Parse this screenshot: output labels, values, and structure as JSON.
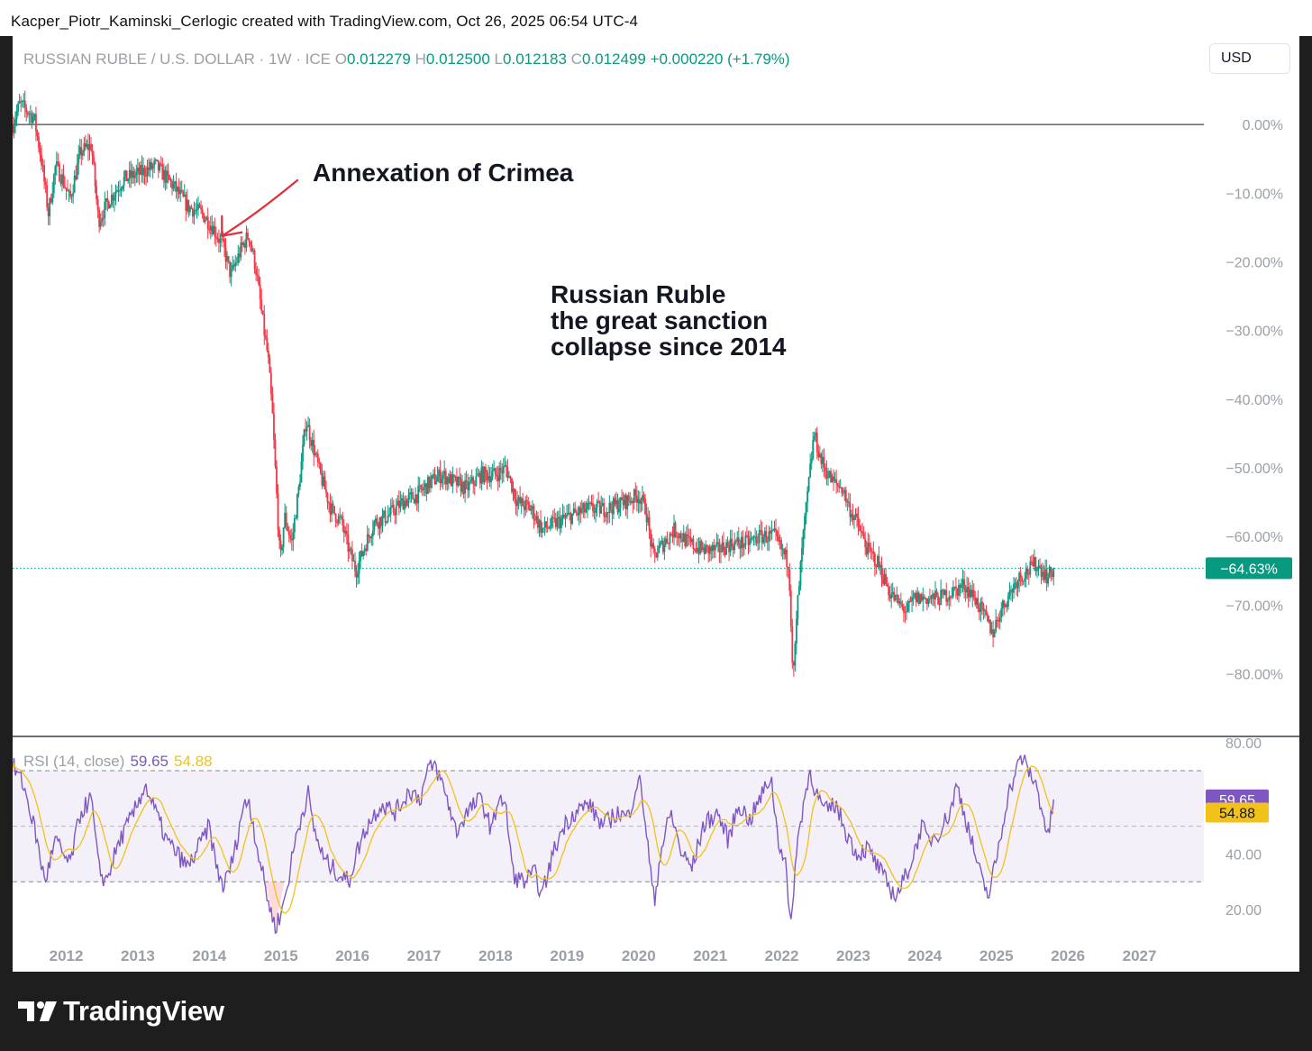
{
  "header": {
    "attribution": "Kacper_Piotr_Kaminski_Cerlogic created with TradingView.com, Oct 26, 2025 06:54 UTC-4"
  },
  "legend": {
    "symbol": "RUSSIAN RUBLE / U.S. DOLLAR · 1W · ICE",
    "o_label": "O",
    "open": "0.012279",
    "h_label": "H",
    "high": "0.012500",
    "l_label": "L",
    "low": "0.012183",
    "c_label": "C",
    "close": "0.012499",
    "change": "+0.000220 (+1.79%)"
  },
  "currency_button": "USD",
  "annotations": {
    "crimea": "Annexation of Crimea",
    "title_line1": "Russian Ruble",
    "title_line2": "the great sanction",
    "title_line3": "collapse since 2014"
  },
  "rsi": {
    "label": "RSI (14, close)",
    "value": "59.65",
    "ma_value": "54.88",
    "value_badge": "59.65",
    "ma_badge": "54.88"
  },
  "price_badge": "−64.63%",
  "footer": {
    "brand": "TradingView"
  },
  "colors": {
    "up": "#089981",
    "down": "#f23645",
    "rsi_line": "#7e57c2",
    "rsi_ma": "#f2c21b",
    "rsi_band": "#7e57c2",
    "annotation_arrow": "#e0303a"
  },
  "chart_data": {
    "type": "candlestick",
    "title": "RUSSIAN RUBLE / U.S. DOLLAR · 1W · ICE",
    "y_axis": {
      "unit": "percent change",
      "ticks": [
        0,
        -10,
        -20,
        -30,
        -40,
        -50,
        -60,
        -70,
        -80
      ],
      "tick_labels": [
        "0.00%",
        "−10.00%",
        "−20.00%",
        "−30.00%",
        "−40.00%",
        "−50.00%",
        "−60.00%",
        "−70.00%",
        "−80.00%"
      ],
      "range": [
        -89,
        5
      ],
      "current": -64.63
    },
    "x_axis": {
      "ticks": [
        2012,
        2013,
        2014,
        2015,
        2016,
        2017,
        2018,
        2019,
        2020,
        2021,
        2022,
        2023,
        2024,
        2025,
        2026,
        2027
      ],
      "tick_labels": [
        "2012",
        "2013",
        "2014",
        "2015",
        "2016",
        "2017",
        "2018",
        "2019",
        "2020",
        "2021",
        "2022",
        "2023",
        "2024",
        "2025",
        "2026",
        "2027"
      ],
      "range": [
        2011.25,
        2027.9
      ]
    },
    "price_path": [
      [
        2011.25,
        0
      ],
      [
        2011.35,
        3
      ],
      [
        2011.55,
        1
      ],
      [
        2011.65,
        -5
      ],
      [
        2011.75,
        -13
      ],
      [
        2011.85,
        -6
      ],
      [
        2011.95,
        -8
      ],
      [
        2012.05,
        -11
      ],
      [
        2012.2,
        -4
      ],
      [
        2012.35,
        -3
      ],
      [
        2012.45,
        -14
      ],
      [
        2012.6,
        -11
      ],
      [
        2012.8,
        -8
      ],
      [
        2013.05,
        -7
      ],
      [
        2013.25,
        -6
      ],
      [
        2013.5,
        -9
      ],
      [
        2013.7,
        -12
      ],
      [
        2013.9,
        -13
      ],
      [
        2014.05,
        -15
      ],
      [
        2014.2,
        -18
      ],
      [
        2014.3,
        -22
      ],
      [
        2014.45,
        -18
      ],
      [
        2014.55,
        -16
      ],
      [
        2014.65,
        -21
      ],
      [
        2014.75,
        -29
      ],
      [
        2014.82,
        -34
      ],
      [
        2014.88,
        -42
      ],
      [
        2014.95,
        -56
      ],
      [
        2014.99,
        -64
      ],
      [
        2015.05,
        -57
      ],
      [
        2015.15,
        -61
      ],
      [
        2015.25,
        -53
      ],
      [
        2015.35,
        -43
      ],
      [
        2015.45,
        -47
      ],
      [
        2015.55,
        -51
      ],
      [
        2015.7,
        -56
      ],
      [
        2015.85,
        -58
      ],
      [
        2015.95,
        -62
      ],
      [
        2016.05,
        -65
      ],
      [
        2016.15,
        -62
      ],
      [
        2016.3,
        -58
      ],
      [
        2016.5,
        -57
      ],
      [
        2016.7,
        -55
      ],
      [
        2016.9,
        -54
      ],
      [
        2017.1,
        -52
      ],
      [
        2017.25,
        -51
      ],
      [
        2017.4,
        -52
      ],
      [
        2017.6,
        -53
      ],
      [
        2017.8,
        -51
      ],
      [
        2018.0,
        -51
      ],
      [
        2018.15,
        -50
      ],
      [
        2018.3,
        -55
      ],
      [
        2018.5,
        -56
      ],
      [
        2018.65,
        -59
      ],
      [
        2018.85,
        -58
      ],
      [
        2019.05,
        -57
      ],
      [
        2019.3,
        -56
      ],
      [
        2019.55,
        -56
      ],
      [
        2019.8,
        -55
      ],
      [
        2020.0,
        -54
      ],
      [
        2020.1,
        -56
      ],
      [
        2020.2,
        -63
      ],
      [
        2020.35,
        -61
      ],
      [
        2020.5,
        -59
      ],
      [
        2020.7,
        -61
      ],
      [
        2020.9,
        -62
      ],
      [
        2021.1,
        -62
      ],
      [
        2021.3,
        -61
      ],
      [
        2021.5,
        -61
      ],
      [
        2021.7,
        -60
      ],
      [
        2021.9,
        -60
      ],
      [
        2022.0,
        -62
      ],
      [
        2022.1,
        -64
      ],
      [
        2022.16,
        -81
      ],
      [
        2022.22,
        -70
      ],
      [
        2022.3,
        -60
      ],
      [
        2022.38,
        -52
      ],
      [
        2022.45,
        -45
      ],
      [
        2022.55,
        -49
      ],
      [
        2022.7,
        -52
      ],
      [
        2022.85,
        -53
      ],
      [
        2022.95,
        -56
      ],
      [
        2023.05,
        -58
      ],
      [
        2023.2,
        -62
      ],
      [
        2023.35,
        -64
      ],
      [
        2023.5,
        -68
      ],
      [
        2023.65,
        -70
      ],
      [
        2023.75,
        -71
      ],
      [
        2023.85,
        -69
      ],
      [
        2024.0,
        -69
      ],
      [
        2024.2,
        -69
      ],
      [
        2024.4,
        -68
      ],
      [
        2024.55,
        -67
      ],
      [
        2024.7,
        -69
      ],
      [
        2024.85,
        -72
      ],
      [
        2024.95,
        -74
      ],
      [
        2025.05,
        -71
      ],
      [
        2025.15,
        -69
      ],
      [
        2025.3,
        -66
      ],
      [
        2025.45,
        -65
      ],
      [
        2025.55,
        -64
      ],
      [
        2025.65,
        -65
      ],
      [
        2025.72,
        -66
      ],
      [
        2025.8,
        -64.63
      ]
    ],
    "rsi": {
      "label": "RSI (14, close)",
      "y_ticks": [
        80,
        40,
        20
      ],
      "y_tick_labels": [
        "80.00",
        "40.00",
        "20.00"
      ],
      "y_range": [
        8,
        82
      ],
      "band": [
        30,
        70
      ],
      "midline": 50,
      "rsi_path": [
        [
          2011.25,
          72
        ],
        [
          2011.4,
          65
        ],
        [
          2011.55,
          50
        ],
        [
          2011.7,
          30
        ],
        [
          2011.85,
          45
        ],
        [
          2011.95,
          40
        ],
        [
          2012.05,
          36
        ],
        [
          2012.2,
          55
        ],
        [
          2012.35,
          60
        ],
        [
          2012.45,
          35
        ],
        [
          2012.55,
          30
        ],
        [
          2012.75,
          45
        ],
        [
          2012.95,
          55
        ],
        [
          2013.1,
          65
        ],
        [
          2013.25,
          55
        ],
        [
          2013.4,
          45
        ],
        [
          2013.55,
          40
        ],
        [
          2013.7,
          35
        ],
        [
          2013.9,
          45
        ],
        [
          2014.0,
          50
        ],
        [
          2014.1,
          35
        ],
        [
          2014.2,
          28
        ],
        [
          2014.35,
          40
        ],
        [
          2014.45,
          55
        ],
        [
          2014.55,
          60
        ],
        [
          2014.65,
          45
        ],
        [
          2014.75,
          32
        ],
        [
          2014.85,
          20
        ],
        [
          2014.92,
          14
        ],
        [
          2015.0,
          18
        ],
        [
          2015.1,
          30
        ],
        [
          2015.2,
          45
        ],
        [
          2015.3,
          55
        ],
        [
          2015.38,
          62
        ],
        [
          2015.45,
          50
        ],
        [
          2015.6,
          38
        ],
        [
          2015.8,
          33
        ],
        [
          2015.95,
          30
        ],
        [
          2016.05,
          40
        ],
        [
          2016.2,
          50
        ],
        [
          2016.4,
          58
        ],
        [
          2016.6,
          55
        ],
        [
          2016.8,
          63
        ],
        [
          2016.95,
          60
        ],
        [
          2017.05,
          70
        ],
        [
          2017.15,
          72
        ],
        [
          2017.3,
          62
        ],
        [
          2017.45,
          48
        ],
        [
          2017.6,
          55
        ],
        [
          2017.8,
          60
        ],
        [
          2017.95,
          48
        ],
        [
          2018.05,
          62
        ],
        [
          2018.15,
          55
        ],
        [
          2018.25,
          32
        ],
        [
          2018.4,
          30
        ],
        [
          2018.55,
          33
        ],
        [
          2018.65,
          25
        ],
        [
          2018.8,
          40
        ],
        [
          2018.95,
          50
        ],
        [
          2019.1,
          55
        ],
        [
          2019.3,
          58
        ],
        [
          2019.5,
          50
        ],
        [
          2019.7,
          55
        ],
        [
          2019.85,
          53
        ],
        [
          2020.0,
          68
        ],
        [
          2020.08,
          55
        ],
        [
          2020.16,
          35
        ],
        [
          2020.22,
          22
        ],
        [
          2020.3,
          40
        ],
        [
          2020.45,
          55
        ],
        [
          2020.6,
          40
        ],
        [
          2020.75,
          35
        ],
        [
          2020.9,
          50
        ],
        [
          2021.1,
          55
        ],
        [
          2021.25,
          45
        ],
        [
          2021.4,
          58
        ],
        [
          2021.55,
          52
        ],
        [
          2021.7,
          60
        ],
        [
          2021.85,
          68
        ],
        [
          2021.95,
          45
        ],
        [
          2022.05,
          38
        ],
        [
          2022.12,
          12
        ],
        [
          2022.2,
          40
        ],
        [
          2022.3,
          58
        ],
        [
          2022.4,
          70
        ],
        [
          2022.48,
          62
        ],
        [
          2022.6,
          55
        ],
        [
          2022.75,
          58
        ],
        [
          2022.9,
          48
        ],
        [
          2023.05,
          40
        ],
        [
          2023.2,
          42
        ],
        [
          2023.35,
          35
        ],
        [
          2023.5,
          28
        ],
        [
          2023.6,
          25
        ],
        [
          2023.7,
          30
        ],
        [
          2023.85,
          40
        ],
        [
          2023.95,
          50
        ],
        [
          2024.05,
          45
        ],
        [
          2024.2,
          48
        ],
        [
          2024.35,
          55
        ],
        [
          2024.45,
          65
        ],
        [
          2024.55,
          55
        ],
        [
          2024.65,
          45
        ],
        [
          2024.8,
          30
        ],
        [
          2024.9,
          25
        ],
        [
          2024.95,
          32
        ],
        [
          2025.05,
          45
        ],
        [
          2025.15,
          60
        ],
        [
          2025.25,
          68
        ],
        [
          2025.35,
          75
        ],
        [
          2025.45,
          70
        ],
        [
          2025.55,
          65
        ],
        [
          2025.65,
          55
        ],
        [
          2025.72,
          45
        ],
        [
          2025.8,
          59.65
        ]
      ]
    }
  }
}
